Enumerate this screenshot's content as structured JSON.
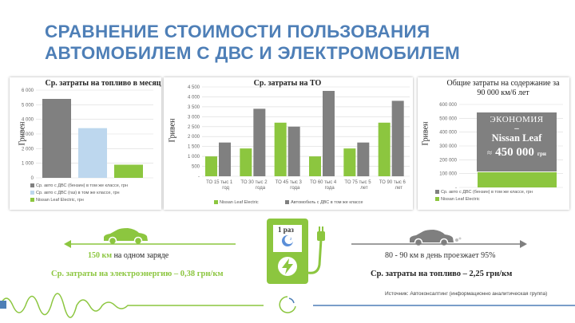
{
  "title": {
    "line1": "СРАВНЕНИЕ СТОИМОСТИ ПОЛЬЗОВАНИЯ",
    "line2": "АВТОМОБИЛЕМ С ДВС И  ЭЛЕКТРОМОБИЛЕМ"
  },
  "colors": {
    "title": "#4e7fb7",
    "gray": "#808080",
    "lightblue": "#bdd7ee",
    "green": "#8cc63f"
  },
  "chart_data": [
    {
      "type": "bar",
      "title": "Ср. затраты на топливо в месяц",
      "ylabel": "Гривен",
      "ylim": [
        0,
        6000
      ],
      "yticks": [
        "0",
        "1 000",
        "2 000",
        "3 000",
        "4 000",
        "5 000",
        "6 000"
      ],
      "series": [
        {
          "name": "Ср. авто с ДВС (бензин) в том же классе, грн",
          "value": 5400,
          "color": "#808080"
        },
        {
          "name": "Ср. авто с ДВС (газ) в том же классе, грн",
          "value": 3400,
          "color": "#bdd7ee"
        },
        {
          "name": "Nissan Leaf Electric, грн",
          "value": 900,
          "color": "#8cc63f"
        }
      ]
    },
    {
      "type": "bar",
      "title": "Ср. затраты на ТО",
      "ylabel": "Гривен",
      "ylim": [
        0,
        4500
      ],
      "yticks": [
        "-",
        "500",
        "1 000",
        "1 500",
        "2 000",
        "2 500",
        "3 000",
        "3 500",
        "4 000",
        "4 500"
      ],
      "categories": [
        "ТО 15 тыс",
        "ТО 30 тыс",
        "ТО 45 тыс",
        "ТО 60 тыс",
        "ТО 75 тыс",
        "ТО 90 тыс"
      ],
      "sublabels": [
        "1 год",
        "2 года",
        "3 года",
        "4 года",
        "5 лет",
        "6 лет"
      ],
      "series": [
        {
          "name": "Nissan Leaf Electric",
          "color": "#8cc63f",
          "values": [
            1000,
            1400,
            2700,
            1000,
            1400,
            2700
          ]
        },
        {
          "name": "Автомобиль с ДВС в том же классе",
          "color": "#808080",
          "values": [
            1700,
            3400,
            2500,
            4300,
            1700,
            3800
          ]
        }
      ]
    },
    {
      "type": "bar",
      "title": "Общие затраты на содержание за 90 000 км/6 лет",
      "ylabel": "Гривен",
      "ylim": [
        0,
        600000
      ],
      "yticks": [
        "-",
        "100 000",
        "200 000",
        "300 000",
        "400 000",
        "500 000",
        "600 000"
      ],
      "series": [
        {
          "name": "Ср. авто с ДВС (бензин) в том же классе, грн",
          "value": 560000,
          "color": "#808080"
        },
        {
          "name": "Nissan Leaf Electric",
          "value": 110000,
          "color": "#8cc63f"
        }
      ],
      "annotation": {
        "line1": "ЭКОНОМИЯ",
        "line2": "–",
        "line3": "Nissan Leaf",
        "approx": "≈",
        "amount": "450 000",
        "unit": "грн"
      }
    }
  ],
  "bottom": {
    "range_km": "150 км",
    "range_text": " на одном заряде",
    "ev_cost": "Ср. затраты на электроэнергию – 0,38 грн/км",
    "charger_label": "1 раз",
    "daily": "80 - 90 км в день проезжает 95%",
    "fuel_cost": "Ср. затраты на топливо – 2,25 грн/км",
    "source": "Источник: Автоконсалтинг (информационно аналитическая группа)"
  }
}
